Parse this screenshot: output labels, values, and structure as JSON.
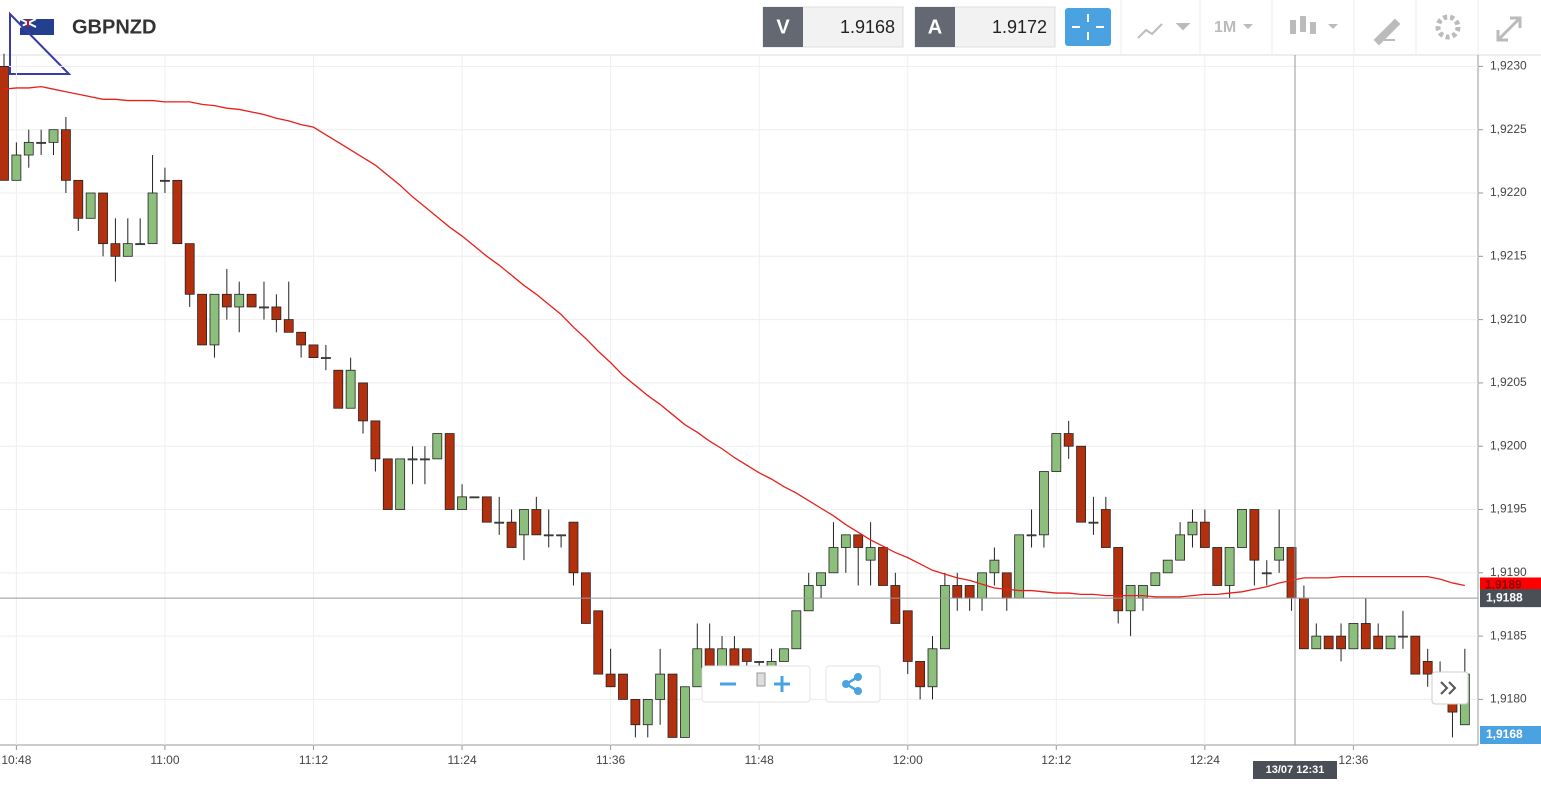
{
  "header": {
    "symbol": "GBPNZD",
    "bid_label": "V",
    "bid": 1.9168,
    "ask_label": "A",
    "ask": 1.9172,
    "timeframe": "1M"
  },
  "chart_data": {
    "type": "candlestick",
    "categories": [
      null,
      "10:48",
      null,
      null,
      null,
      null,
      null,
      null,
      null,
      null,
      null,
      null,
      null,
      "11:00",
      null,
      null,
      null,
      null,
      null,
      null,
      null,
      null,
      null,
      null,
      null,
      "11:12",
      null,
      null,
      null,
      null,
      null,
      null,
      null,
      null,
      null,
      null,
      null,
      "11:24",
      null,
      null,
      null,
      null,
      null,
      null,
      null,
      null,
      null,
      null,
      null,
      "11:36",
      null,
      null,
      null,
      null,
      null,
      null,
      null,
      null,
      null,
      null,
      null,
      "11:48",
      null,
      null,
      null,
      null,
      null,
      null,
      null,
      null,
      null,
      null,
      null,
      "12:00",
      null,
      null,
      null,
      null,
      null,
      null,
      null,
      null,
      null,
      null,
      null,
      "12:12",
      null,
      null,
      null,
      null,
      null,
      null,
      null,
      null,
      null,
      null,
      null,
      "12:24",
      null,
      null,
      null,
      null,
      null,
      null,
      null,
      null,
      null,
      null,
      null,
      "12:36",
      null,
      null,
      null,
      null,
      null,
      null,
      null,
      null,
      null
    ],
    "open": [
      1.923,
      1.9221,
      1.9223,
      1.9224,
      1.9224,
      1.9225,
      1.9221,
      1.9218,
      1.922,
      1.9216,
      1.9215,
      1.9216,
      1.9216,
      1.9221,
      1.9221,
      1.9216,
      1.9212,
      1.9208,
      1.9212,
      1.9211,
      1.9212,
      1.9211,
      1.9211,
      1.921,
      1.9209,
      1.9208,
      1.9207,
      1.9206,
      1.9203,
      1.9205,
      1.9202,
      1.9199,
      1.9195,
      1.9199,
      1.9199,
      1.9199,
      1.9201,
      1.9195,
      1.9196,
      1.9196,
      1.9194,
      1.9194,
      1.9193,
      1.9195,
      1.9193,
      1.9193,
      1.9194,
      1.919,
      1.9187,
      1.9182,
      1.9182,
      1.918,
      1.9178,
      1.918,
      1.9182,
      1.9177,
      1.9181,
      1.9184,
      1.9182,
      1.9184,
      1.9184,
      1.9183,
      1.9182,
      1.9183,
      1.9184,
      1.9187,
      1.9189,
      1.919,
      1.9192,
      1.9193,
      1.9191,
      1.9192,
      1.9189,
      1.9187,
      1.9183,
      1.9181,
      1.9184,
      1.9189,
      1.9189,
      1.9188,
      1.919,
      1.919,
      1.9188,
      1.9193,
      1.9193,
      1.9198,
      1.9201,
      1.92,
      1.9194,
      1.9195,
      1.9192,
      1.9187,
      1.9188,
      1.9189,
      1.919,
      1.9191,
      1.9193,
      1.9194,
      1.9192,
      1.9189,
      1.9192,
      1.9195,
      1.919,
      1.9191,
      1.9192,
      1.9188,
      1.9184,
      1.9185,
      1.9185,
      1.9184,
      1.9186,
      1.9185,
      1.9184,
      1.9185,
      1.9185,
      1.9183,
      1.9182,
      1.918,
      1.9178
    ],
    "high": [
      1.9231,
      1.9224,
      1.9225,
      1.9225,
      1.9225,
      1.9226,
      1.9221,
      1.922,
      1.922,
      1.9218,
      1.9218,
      1.9218,
      1.9223,
      1.9222,
      1.9221,
      1.9216,
      1.9212,
      1.9212,
      1.9214,
      1.9213,
      1.9212,
      1.9213,
      1.9212,
      1.9213,
      1.9209,
      1.9208,
      1.9208,
      1.9206,
      1.9207,
      1.9205,
      1.9202,
      1.9199,
      1.9199,
      1.92,
      1.92,
      1.9201,
      1.9201,
      1.9197,
      1.9196,
      1.9196,
      1.9196,
      1.9195,
      1.9195,
      1.9196,
      1.9195,
      1.9193,
      1.9194,
      1.919,
      1.9187,
      1.9184,
      1.9182,
      1.918,
      1.918,
      1.9184,
      1.9182,
      1.9181,
      1.9186,
      1.9186,
      1.9185,
      1.9185,
      1.9184,
      1.9183,
      1.9184,
      1.9184,
      1.9187,
      1.919,
      1.919,
      1.9194,
      1.9193,
      1.9193,
      1.9194,
      1.9192,
      1.919,
      1.9187,
      1.9183,
      1.9185,
      1.919,
      1.919,
      1.9189,
      1.919,
      1.9192,
      1.919,
      1.9193,
      1.9195,
      1.9198,
      1.9201,
      1.9202,
      1.92,
      1.9196,
      1.9196,
      1.9192,
      1.9189,
      1.9189,
      1.919,
      1.9191,
      1.9194,
      1.9195,
      1.9195,
      1.9192,
      1.9192,
      1.9195,
      1.9195,
      1.9191,
      1.9195,
      1.9192,
      1.9189,
      1.9186,
      1.9185,
      1.9186,
      1.9186,
      1.9188,
      1.9186,
      1.9185,
      1.9187,
      1.9185,
      1.9184,
      1.9183,
      1.9181,
      1.9184
    ],
    "low": [
      1.9221,
      1.9221,
      1.9222,
      1.9223,
      1.9223,
      1.922,
      1.9217,
      1.9218,
      1.9215,
      1.9213,
      1.9215,
      1.9216,
      1.9216,
      1.922,
      1.9216,
      1.9211,
      1.9208,
      1.9207,
      1.921,
      1.9209,
      1.9211,
      1.921,
      1.9209,
      1.9209,
      1.9207,
      1.9207,
      1.9206,
      1.9203,
      1.9203,
      1.9201,
      1.9198,
      1.9195,
      1.9195,
      1.9197,
      1.9197,
      1.9199,
      1.9195,
      1.9195,
      1.9196,
      1.9194,
      1.9193,
      1.9192,
      1.9191,
      1.9193,
      1.9192,
      1.9192,
      1.9189,
      1.9186,
      1.9182,
      1.9181,
      1.918,
      1.9177,
      1.9177,
      1.9178,
      1.9177,
      1.9177,
      1.9181,
      1.9182,
      1.9181,
      1.9182,
      1.9182,
      1.9182,
      1.918,
      1.9183,
      1.9184,
      1.9187,
      1.9188,
      1.919,
      1.919,
      1.9189,
      1.9189,
      1.9189,
      1.9186,
      1.9182,
      1.918,
      1.918,
      1.9184,
      1.9187,
      1.9187,
      1.9187,
      1.9189,
      1.9187,
      1.9188,
      1.9192,
      1.9192,
      1.9198,
      1.9199,
      1.9194,
      1.9193,
      1.9192,
      1.9186,
      1.9185,
      1.9187,
      1.9189,
      1.919,
      1.9191,
      1.9192,
      1.9192,
      1.9189,
      1.9188,
      1.9192,
      1.9189,
      1.9189,
      1.919,
      1.9187,
      1.9184,
      1.9184,
      1.9184,
      1.9183,
      1.9184,
      1.9184,
      1.9184,
      1.9184,
      1.9184,
      1.9182,
      1.9181,
      1.918,
      1.9177,
      1.9178
    ],
    "close": [
      1.9221,
      1.9223,
      1.9224,
      1.9224,
      1.9225,
      1.9221,
      1.9218,
      1.922,
      1.9216,
      1.9215,
      1.9216,
      1.9216,
      1.922,
      1.9221,
      1.9216,
      1.9212,
      1.9208,
      1.9212,
      1.9211,
      1.9212,
      1.9211,
      1.9211,
      1.921,
      1.9209,
      1.9208,
      1.9207,
      1.9207,
      1.9203,
      1.9206,
      1.9202,
      1.9199,
      1.9195,
      1.9199,
      1.9199,
      1.9199,
      1.9201,
      1.9195,
      1.9196,
      1.9196,
      1.9194,
      1.9194,
      1.9192,
      1.9195,
      1.9193,
      1.9193,
      1.9193,
      1.919,
      1.9186,
      1.9182,
      1.9181,
      1.918,
      1.9178,
      1.918,
      1.9182,
      1.9177,
      1.9181,
      1.9184,
      1.9182,
      1.9184,
      1.9182,
      1.9183,
      1.9183,
      1.9183,
      1.9184,
      1.9187,
      1.9189,
      1.919,
      1.9192,
      1.9193,
      1.9192,
      1.9192,
      1.9189,
      1.9186,
      1.9183,
      1.9181,
      1.9184,
      1.9189,
      1.9188,
      1.9188,
      1.919,
      1.9191,
      1.9188,
      1.9193,
      1.9193,
      1.9198,
      1.9201,
      1.92,
      1.9194,
      1.9194,
      1.9192,
      1.9187,
      1.9189,
      1.9189,
      1.919,
      1.9191,
      1.9193,
      1.9194,
      1.9192,
      1.9189,
      1.9192,
      1.9195,
      1.9191,
      1.919,
      1.9192,
      1.9188,
      1.9184,
      1.9185,
      1.9184,
      1.9184,
      1.9186,
      1.9184,
      1.9184,
      1.9185,
      1.9185,
      1.9182,
      1.9182,
      1.9181,
      1.9179,
      1.9182
    ],
    "up_color": "#8dbf7c",
    "down_color": "#b3300f",
    "moving_average": {
      "color": "#e8201c",
      "values": [
        1.92282,
        1.92283,
        1.92283,
        1.92284,
        1.92282,
        1.9228,
        1.92278,
        1.92276,
        1.92274,
        1.92274,
        1.92273,
        1.92273,
        1.92273,
        1.92272,
        1.92272,
        1.92272,
        1.9227,
        1.92269,
        1.92267,
        1.92266,
        1.92264,
        1.92262,
        1.92259,
        1.92257,
        1.92254,
        1.92252,
        1.92246,
        1.9224,
        1.92234,
        1.92228,
        1.92222,
        1.92214,
        1.92206,
        1.92197,
        1.92189,
        1.92181,
        1.92173,
        1.92166,
        1.92158,
        1.9215,
        1.92143,
        1.92135,
        1.92127,
        1.9212,
        1.92112,
        1.92104,
        1.92094,
        1.92085,
        1.92075,
        1.92066,
        1.92056,
        1.92048,
        1.9204,
        1.92033,
        1.92025,
        1.92017,
        1.92011,
        1.92004,
        1.91998,
        1.91991,
        1.91985,
        1.91979,
        1.91974,
        1.91968,
        1.91963,
        1.91957,
        1.91951,
        1.91945,
        1.91938,
        1.91932,
        1.91926,
        1.91921,
        1.91916,
        1.91912,
        1.91907,
        1.91902,
        1.91899,
        1.91896,
        1.91894,
        1.91891,
        1.91888,
        1.91887,
        1.91886,
        1.91886,
        1.91885,
        1.91884,
        1.91884,
        1.91883,
        1.91883,
        1.91882,
        1.91882,
        1.91882,
        1.91882,
        1.91881,
        1.91881,
        1.91881,
        1.91882,
        1.91883,
        1.91883,
        1.91884,
        1.91885,
        1.91887,
        1.91889,
        1.91892,
        1.91894,
        1.91896,
        1.91896,
        1.91896,
        1.91897,
        1.91897,
        1.91897,
        1.91897,
        1.91897,
        1.91897,
        1.91897,
        1.91897,
        1.91895,
        1.91892,
        1.9189
      ],
      "label": "1,9189"
    },
    "ylim": [
      1.91764,
      1.92309
    ],
    "yticks": [
      {
        "value": 1.918,
        "label": "1,9180"
      },
      {
        "value": 1.9185,
        "label": "1,9185"
      },
      {
        "value": 1.919,
        "label": "1,9190"
      },
      {
        "value": 1.9195,
        "label": "1,9195"
      },
      {
        "value": 1.92,
        "label": "1,9200"
      },
      {
        "value": 1.9205,
        "label": "1,9205"
      },
      {
        "value": 1.921,
        "label": "1,9210"
      },
      {
        "value": 1.9215,
        "label": "1,9215"
      },
      {
        "value": 1.922,
        "label": "1,9220"
      },
      {
        "value": 1.9225,
        "label": "1,9225"
      },
      {
        "value": 1.923,
        "label": "1,9230"
      }
    ],
    "grid": true,
    "crosshair": {
      "price": {
        "value": 1.9188,
        "label": "1,9188"
      },
      "time_label": "13/07 12:31"
    },
    "bid_label": "1,9168"
  }
}
